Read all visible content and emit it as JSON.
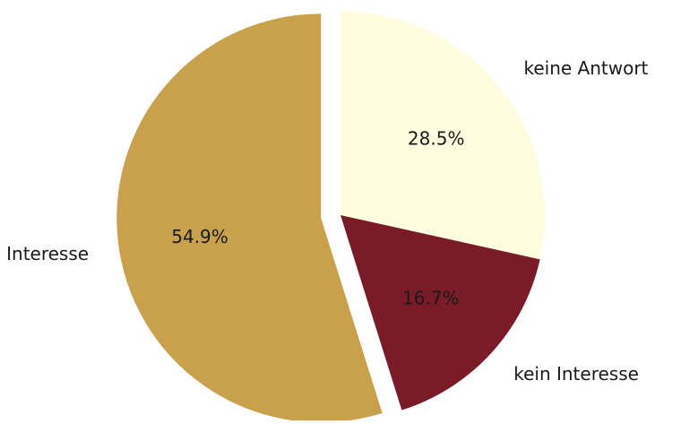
{
  "chart_data": {
    "type": "pie",
    "title": "",
    "slices": [
      {
        "label": "keine Antwort",
        "value": 28.5,
        "pct_label": "28.5%",
        "color": "#fffde0",
        "explode": false
      },
      {
        "label": "kein Interesse",
        "value": 16.7,
        "pct_label": "16.7%",
        "color": "#7a1c27",
        "explode": false
      },
      {
        "label": "Interesse",
        "value": 54.9,
        "pct_label": "54.9%",
        "color": "#c9a04b",
        "explode": true
      }
    ],
    "start_angle_deg": 90,
    "direction": "clockwise",
    "legend": "none"
  }
}
